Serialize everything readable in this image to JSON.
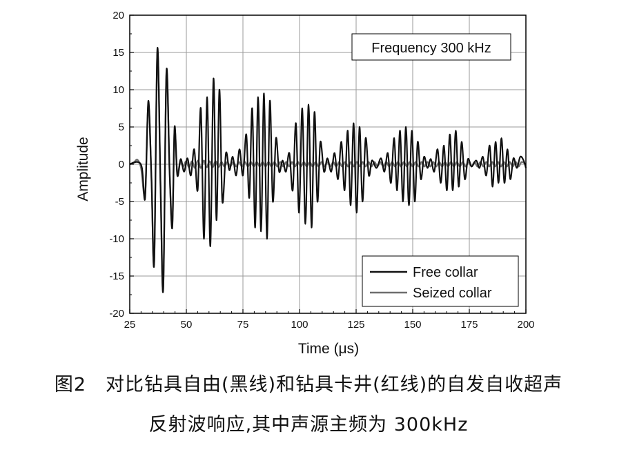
{
  "chart_data": {
    "type": "line",
    "title": "",
    "annotation": "Frequency 300 kHz",
    "xlabel": "Time (μs)",
    "ylabel": "Amplitude",
    "xlim": [
      25,
      200
    ],
    "ylim": [
      -20,
      20
    ],
    "x_ticks": [
      25,
      50,
      75,
      100,
      125,
      150,
      175,
      200
    ],
    "y_ticks": [
      -20,
      -15,
      -10,
      -5,
      0,
      5,
      10,
      15,
      20
    ],
    "grid": true,
    "legend_position": "bottom-right",
    "series": [
      {
        "name": "Free collar",
        "color": "#111111",
        "points": [
          [
            25,
            0.0
          ],
          [
            28.4,
            0.3
          ],
          [
            30.4,
            -0.5
          ],
          [
            31.8,
            -4.5
          ],
          [
            33.2,
            8.5
          ],
          [
            34.6,
            -2.0
          ],
          [
            35.8,
            -13.3
          ],
          [
            37.2,
            15.5
          ],
          [
            38.6,
            -3.0
          ],
          [
            39.8,
            -16.8
          ],
          [
            41.2,
            12.5
          ],
          [
            42.6,
            -1.0
          ],
          [
            43.8,
            -8.5
          ],
          [
            44.8,
            5.0
          ],
          [
            46.0,
            -1.5
          ],
          [
            47.5,
            0.7
          ],
          [
            49.0,
            -1.0
          ],
          [
            50.5,
            0.8
          ],
          [
            52.0,
            -1.5
          ],
          [
            53.5,
            2.0
          ],
          [
            55.0,
            -3.5
          ],
          [
            56.4,
            7.5
          ],
          [
            57.8,
            -10.0
          ],
          [
            59.2,
            9.0
          ],
          [
            60.6,
            -11.0
          ],
          [
            62.0,
            11.5
          ],
          [
            63.3,
            -7.5
          ],
          [
            64.6,
            10.0
          ],
          [
            65.9,
            -5.0
          ],
          [
            67.5,
            1.5
          ],
          [
            69.0,
            -0.8
          ],
          [
            70.5,
            1.0
          ],
          [
            72.0,
            -1.5
          ],
          [
            73.5,
            2.0
          ],
          [
            75.0,
            -1.5
          ],
          [
            76.5,
            4.0
          ],
          [
            77.8,
            -4.5
          ],
          [
            79.1,
            7.5
          ],
          [
            80.4,
            -8.5
          ],
          [
            81.7,
            9.0
          ],
          [
            83.0,
            -9.0
          ],
          [
            84.3,
            9.5
          ],
          [
            85.6,
            -10.0
          ],
          [
            86.9,
            8.5
          ],
          [
            88.2,
            -5.0
          ],
          [
            89.6,
            3.5
          ],
          [
            91.0,
            -1.0
          ],
          [
            92.5,
            0.5
          ],
          [
            94.0,
            -1.0
          ],
          [
            95.5,
            1.5
          ],
          [
            97.0,
            -3.5
          ],
          [
            98.4,
            5.5
          ],
          [
            99.8,
            -6.5
          ],
          [
            101.2,
            7.5
          ],
          [
            102.6,
            -8.0
          ],
          [
            104.0,
            8.0
          ],
          [
            105.3,
            -8.5
          ],
          [
            106.6,
            7.0
          ],
          [
            107.9,
            -5.0
          ],
          [
            109.2,
            3.0
          ],
          [
            110.8,
            -1.0
          ],
          [
            112.3,
            0.8
          ],
          [
            114.0,
            -1.0
          ],
          [
            115.5,
            1.5
          ],
          [
            117.0,
            -2.0
          ],
          [
            118.5,
            3.0
          ],
          [
            119.9,
            -3.5
          ],
          [
            121.3,
            4.5
          ],
          [
            122.6,
            -5.5
          ],
          [
            123.9,
            5.5
          ],
          [
            125.2,
            -6.5
          ],
          [
            126.5,
            5.0
          ],
          [
            127.8,
            -5.0
          ],
          [
            129.2,
            3.5
          ],
          [
            130.6,
            -1.5
          ],
          [
            132.0,
            0.5
          ],
          [
            134.0,
            -0.5
          ],
          [
            136.0,
            0.8
          ],
          [
            137.5,
            -1.0
          ],
          [
            139.0,
            1.5
          ],
          [
            140.4,
            -2.5
          ],
          [
            141.8,
            3.5
          ],
          [
            143.1,
            -3.5
          ],
          [
            144.4,
            4.5
          ],
          [
            145.7,
            -5.0
          ],
          [
            147.0,
            5.0
          ],
          [
            148.3,
            -5.5
          ],
          [
            149.6,
            4.5
          ],
          [
            150.9,
            -5.0
          ],
          [
            152.2,
            3.0
          ],
          [
            153.6,
            -2.0
          ],
          [
            155.0,
            1.0
          ],
          [
            156.5,
            -0.5
          ],
          [
            158.0,
            0.7
          ],
          [
            159.5,
            -1.0
          ],
          [
            161.0,
            2.0
          ],
          [
            162.4,
            -2.5
          ],
          [
            163.8,
            2.5
          ],
          [
            165.1,
            -3.5
          ],
          [
            166.4,
            4.0
          ],
          [
            167.7,
            -3.5
          ],
          [
            169.0,
            4.5
          ],
          [
            170.3,
            -3.0
          ],
          [
            171.6,
            3.0
          ],
          [
            173.0,
            -2.0
          ],
          [
            174.4,
            0.7
          ],
          [
            176.0,
            -0.3
          ],
          [
            178.0,
            0.5
          ],
          [
            179.5,
            -0.5
          ],
          [
            181.0,
            1.0
          ],
          [
            182.5,
            -1.5
          ],
          [
            184.0,
            2.5
          ],
          [
            185.3,
            -3.0
          ],
          [
            186.6,
            3.0
          ],
          [
            187.9,
            -2.5
          ],
          [
            189.2,
            3.5
          ],
          [
            190.5,
            -2.5
          ],
          [
            191.8,
            2.0
          ],
          [
            193.1,
            -2.0
          ],
          [
            194.5,
            0.8
          ],
          [
            196.0,
            -0.5
          ],
          [
            197.5,
            1.0
          ],
          [
            199.0,
            0.5
          ],
          [
            200.0,
            -0.5
          ]
        ]
      },
      {
        "name": "Seized collar",
        "color": "#6e6e6e",
        "points": [
          [
            25,
            0.0
          ],
          [
            27.0,
            0.3
          ],
          [
            28.4,
            0.6
          ],
          [
            30.0,
            -0.5
          ],
          [
            31.8,
            -4.0
          ],
          [
            33.2,
            8.0
          ],
          [
            34.6,
            -2.0
          ],
          [
            35.8,
            -13.0
          ],
          [
            37.2,
            15.0
          ],
          [
            38.6,
            -3.0
          ],
          [
            39.8,
            -16.5
          ],
          [
            41.2,
            12.0
          ],
          [
            42.6,
            -1.0
          ],
          [
            43.8,
            -8.0
          ],
          [
            44.8,
            4.5
          ],
          [
            46.0,
            -1.2
          ],
          [
            47.3,
            0.3
          ],
          [
            48.6,
            -0.3
          ],
          [
            49.9,
            0.4
          ],
          [
            51.2,
            -0.4
          ],
          [
            52.5,
            0.4
          ],
          [
            53.8,
            -0.5
          ],
          [
            55.1,
            0.5
          ],
          [
            56.4,
            -0.5
          ],
          [
            57.7,
            0.5
          ],
          [
            59.0,
            -0.4
          ],
          [
            60.3,
            0.4
          ],
          [
            61.6,
            -0.4
          ],
          [
            62.9,
            0.4
          ],
          [
            64.2,
            -0.4
          ],
          [
            65.5,
            0.3
          ],
          [
            66.8,
            -0.3
          ],
          [
            68.1,
            0.3
          ],
          [
            69.4,
            -0.3
          ],
          [
            70.7,
            0.3
          ],
          [
            72.0,
            -0.3
          ],
          [
            73.3,
            0.3
          ],
          [
            74.6,
            -0.3
          ],
          [
            75.9,
            0.3
          ],
          [
            77.2,
            -0.3
          ],
          [
            78.5,
            0.3
          ],
          [
            79.8,
            -0.3
          ],
          [
            81.1,
            0.3
          ],
          [
            82.4,
            -0.3
          ],
          [
            83.7,
            0.3
          ],
          [
            85.0,
            -0.3
          ],
          [
            86.3,
            0.3
          ],
          [
            87.6,
            -0.3
          ],
          [
            88.9,
            0.3
          ],
          [
            90.2,
            -0.3
          ],
          [
            91.5,
            0.3
          ],
          [
            92.8,
            -0.3
          ],
          [
            94.1,
            0.3
          ],
          [
            95.4,
            -0.3
          ],
          [
            96.7,
            0.3
          ],
          [
            98.0,
            -0.3
          ],
          [
            99.3,
            0.3
          ],
          [
            100.6,
            -0.3
          ],
          [
            101.9,
            0.3
          ],
          [
            103.2,
            -0.3
          ],
          [
            104.5,
            0.3
          ],
          [
            105.8,
            -0.3
          ],
          [
            107.1,
            0.3
          ],
          [
            108.4,
            -0.3
          ],
          [
            109.7,
            0.3
          ],
          [
            111.0,
            -0.3
          ],
          [
            112.3,
            0.3
          ],
          [
            113.6,
            -0.3
          ],
          [
            114.9,
            0.3
          ],
          [
            116.2,
            -0.3
          ],
          [
            117.5,
            0.3
          ],
          [
            118.8,
            -0.3
          ],
          [
            120.1,
            0.3
          ],
          [
            121.4,
            -0.3
          ],
          [
            122.7,
            0.3
          ],
          [
            124.0,
            -0.3
          ],
          [
            125.3,
            0.3
          ],
          [
            126.6,
            -0.3
          ],
          [
            127.9,
            0.3
          ],
          [
            129.2,
            -0.3
          ],
          [
            130.5,
            0.3
          ],
          [
            131.8,
            -0.3
          ],
          [
            133.1,
            0.3
          ],
          [
            134.4,
            -0.3
          ],
          [
            135.7,
            0.3
          ],
          [
            137.0,
            -0.3
          ],
          [
            138.3,
            0.3
          ],
          [
            139.6,
            -0.3
          ],
          [
            140.9,
            0.3
          ],
          [
            142.2,
            -0.3
          ],
          [
            143.5,
            0.3
          ],
          [
            144.8,
            -0.3
          ],
          [
            146.1,
            0.3
          ],
          [
            147.4,
            -0.3
          ],
          [
            148.7,
            0.3
          ],
          [
            150.0,
            -0.3
          ],
          [
            151.3,
            0.3
          ],
          [
            152.6,
            -0.3
          ],
          [
            153.9,
            0.3
          ],
          [
            155.2,
            -0.3
          ],
          [
            156.5,
            0.3
          ],
          [
            157.8,
            -0.3
          ],
          [
            159.1,
            0.3
          ],
          [
            160.4,
            -0.3
          ],
          [
            161.7,
            0.3
          ],
          [
            163.0,
            -0.3
          ],
          [
            164.3,
            0.3
          ],
          [
            165.6,
            -0.3
          ],
          [
            166.9,
            0.3
          ],
          [
            168.2,
            -0.3
          ],
          [
            169.5,
            0.3
          ],
          [
            170.8,
            -0.3
          ],
          [
            172.1,
            0.3
          ],
          [
            173.4,
            -0.3
          ],
          [
            174.7,
            0.3
          ],
          [
            176.0,
            -0.3
          ],
          [
            177.3,
            0.3
          ],
          [
            178.6,
            -0.3
          ],
          [
            179.9,
            0.3
          ],
          [
            181.2,
            -0.3
          ],
          [
            182.5,
            0.3
          ],
          [
            183.8,
            -0.3
          ],
          [
            185.1,
            0.3
          ],
          [
            186.4,
            -0.3
          ],
          [
            187.7,
            0.3
          ],
          [
            189.0,
            -0.3
          ],
          [
            190.3,
            0.3
          ],
          [
            191.6,
            -0.3
          ],
          [
            192.9,
            0.3
          ],
          [
            194.2,
            -0.3
          ],
          [
            195.5,
            0.3
          ],
          [
            196.8,
            -0.3
          ],
          [
            198.1,
            0.3
          ],
          [
            200.0,
            0.0
          ]
        ]
      }
    ]
  },
  "caption": {
    "line1": "图2　对比钻具自由(黑线)和钻具卡井(红线)的自发自收超声",
    "line2": "反射波响应,其中声源主频为 300kHz"
  }
}
